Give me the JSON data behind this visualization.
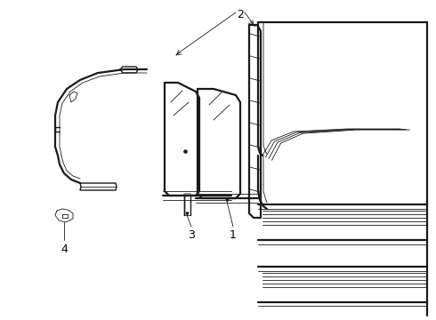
{
  "bg_color": "#ffffff",
  "line_color": "#1a1a1a",
  "label_color": "#000000",
  "label_fontsize": 9,
  "lw_thin": 0.6,
  "lw_med": 1.0,
  "lw_thick": 1.6
}
